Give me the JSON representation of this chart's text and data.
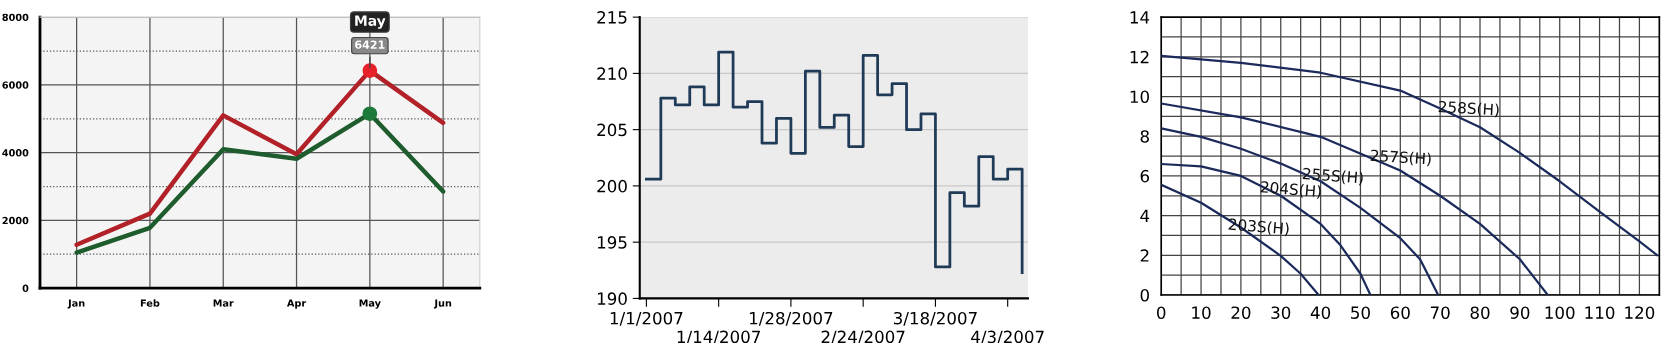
{
  "chart_data": [
    {
      "type": "line",
      "categories": [
        "Jan",
        "Feb",
        "Mar",
        "Apr",
        "May",
        "Jun"
      ],
      "ylim": [
        0,
        8000
      ],
      "yticks": [
        0,
        {
          "value": 1000,
          "label": null
        },
        2000,
        {
          "value": 3000,
          "label": null
        },
        4000,
        {
          "value": 5000,
          "label": null
        },
        6000,
        {
          "value": 7000,
          "label": null
        },
        8000
      ],
      "grid": true,
      "series": [
        {
          "color": "#b22028",
          "values": [
            1280,
            2200,
            5100,
            3950,
            6421,
            4880
          ]
        },
        {
          "color": "#1e5c2e",
          "values": [
            1050,
            1780,
            4100,
            3820,
            5150,
            2850
          ]
        },
        {
          "type": "scatter",
          "x": [
            "May",
            "May"
          ],
          "colors": [
            "#e8202a",
            "#1e7a3a"
          ],
          "values": [
            6421,
            5150
          ]
        }
      ],
      "annotations": [
        {
          "text": "6421",
          "x": "May",
          "y": 6421
        },
        "May"
      ]
    },
    {
      "type": "step",
      "categories": [
        "1/1/2007",
        null,
        null,
        null,
        null,
        "1/14/2007",
        null,
        null,
        null,
        null,
        "1/28/2007",
        null,
        null,
        null,
        null,
        "2/24/2007",
        null,
        null,
        null,
        null,
        "3/18/2007",
        null,
        null,
        null,
        null,
        "4/3/2007",
        null
      ],
      "ylim": [
        190,
        215
      ],
      "yticks": [
        190,
        195,
        200,
        205,
        210,
        215
      ],
      "grid": "y",
      "series": [
        {
          "color": "#1f3b57",
          "values": [
            200.6,
            207.8,
            207.2,
            208.8,
            207.2,
            211.9,
            207.0,
            207.5,
            203.8,
            206.0,
            202.9,
            210.2,
            205.2,
            206.3,
            203.5,
            211.6,
            208.1,
            209.1,
            205.0,
            206.4,
            192.8,
            199.4,
            198.2,
            202.6,
            200.6,
            201.5,
            192.3
          ]
        }
      ]
    },
    {
      "type": "line",
      "xlim": [
        0,
        125
      ],
      "ylim": [
        0,
        14
      ],
      "xticks": [
        0,
        {
          "value": 5,
          "label": null
        },
        10,
        {
          "value": 15,
          "label": null
        },
        20,
        {
          "value": 25,
          "label": null
        },
        30,
        {
          "value": 35,
          "label": null
        },
        40,
        {
          "value": 45,
          "label": null
        },
        50,
        {
          "value": 55,
          "label": null
        },
        60,
        {
          "value": 65,
          "label": null
        },
        70,
        {
          "value": 75,
          "label": null
        },
        80,
        {
          "value": 85,
          "label": null
        },
        90,
        {
          "value": 95,
          "label": null
        },
        100,
        {
          "value": 105,
          "label": null
        },
        110,
        {
          "value": 115,
          "label": null
        },
        120
      ],
      "yticks": [
        0,
        {
          "value": 1,
          "label": null
        },
        2,
        {
          "value": 3,
          "label": null
        },
        4,
        {
          "value": 5,
          "label": null
        },
        6,
        {
          "value": 7,
          "label": null
        },
        8,
        {
          "value": 9,
          "label": null
        },
        10,
        {
          "value": 11,
          "label": null
        },
        12,
        {
          "value": 13,
          "label": null
        },
        14
      ],
      "grid": true,
      "series": [
        {
          "name": "258S(H)",
          "color": "#1b2a5a",
          "x": [
            0,
            20,
            40,
            60,
            70,
            80,
            90,
            100,
            110,
            120,
            124.5
          ],
          "values": [
            12.05,
            11.7,
            11.2,
            10.3,
            9.4,
            8.45,
            7.16,
            5.73,
            4.2,
            2.7,
            2.0
          ]
        },
        {
          "name": "257S(H)",
          "color": "#1b2a5a",
          "x": [
            0,
            20,
            40,
            60,
            70,
            80,
            90,
            97
          ],
          "values": [
            9.65,
            8.95,
            7.97,
            6.27,
            5.0,
            3.58,
            1.8,
            0
          ]
        },
        {
          "name": "255S(H)",
          "color": "#1b2a5a",
          "x": [
            0,
            10,
            20,
            30,
            40,
            50,
            60,
            65,
            69.5
          ],
          "values": [
            8.4,
            7.97,
            7.37,
            6.62,
            5.73,
            4.39,
            2.86,
            1.79,
            0
          ]
        },
        {
          "name": "204S(H)",
          "color": "#1b2a5a",
          "x": [
            0,
            10,
            20,
            30,
            40,
            45,
            50,
            52.5
          ],
          "values": [
            6.6,
            6.48,
            6.0,
            5.0,
            3.58,
            2.5,
            1.07,
            0
          ]
        },
        {
          "name": "203S(H)",
          "color": "#1b2a5a",
          "x": [
            0,
            10,
            20,
            30,
            35,
            39.5
          ],
          "values": [
            5.55,
            4.65,
            3.4,
            1.97,
            1.07,
            0
          ]
        }
      ]
    }
  ]
}
